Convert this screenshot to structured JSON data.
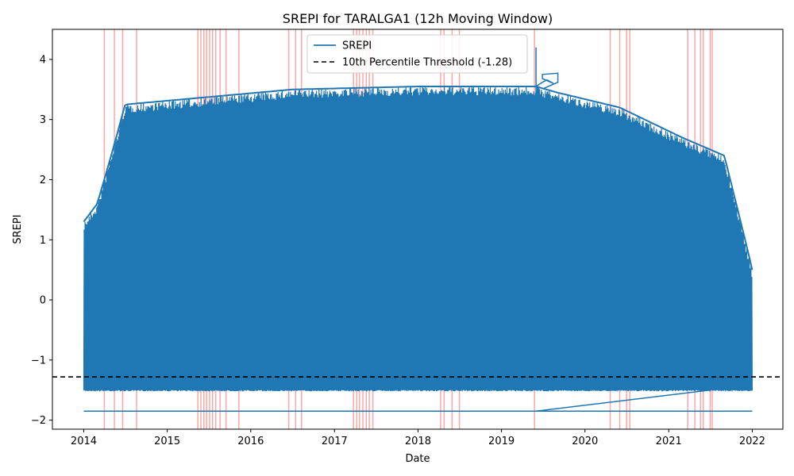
{
  "chart_data": {
    "type": "line",
    "title": "SREPI for TARALGA1 (12h Moving Window)",
    "xlabel": "Date",
    "ylabel": "SREPI",
    "x_ticks": [
      "2014",
      "2015",
      "2016",
      "2017",
      "2018",
      "2019",
      "2020",
      "2021",
      "2022"
    ],
    "y_ticks": [
      -2,
      -1,
      0,
      1,
      2,
      3,
      4
    ],
    "xlim": [
      "2013-08-17",
      "2022-05-15"
    ],
    "ylim": [
      -2.15,
      4.5
    ],
    "legend": {
      "position": "top-center",
      "entries": [
        "SREPI",
        "10th Percentile Threshold (-1.28)"
      ]
    },
    "series": [
      {
        "name": "SREPI",
        "color": "#1f77b4",
        "style": "dense oscillation filling the band",
        "band_x": [
          "2014-01-01",
          "2022-01-01"
        ],
        "band_lower": -1.5,
        "upper_envelope": [
          [
            "2014-01-01",
            1.3
          ],
          [
            "2014-03-01",
            1.6
          ],
          [
            "2014-05-01",
            2.4
          ],
          [
            "2014-07-01",
            3.25
          ],
          [
            "2016-07-01",
            3.5
          ],
          [
            "2018-01-01",
            3.55
          ],
          [
            "2019-06-01",
            3.55
          ],
          [
            "2019-09-01",
            3.45
          ],
          [
            "2020-06-01",
            3.2
          ],
          [
            "2021-03-01",
            2.7
          ],
          [
            "2021-09-01",
            2.4
          ],
          [
            "2021-12-01",
            1.0
          ],
          [
            "2022-01-01",
            0.5
          ]
        ],
        "baseline_line": {
          "x": [
            "2014-01-01",
            "2022-01-01"
          ],
          "y": -1.85
        },
        "diagonal_segment": {
          "x": [
            "2019-06-01",
            "2021-07-01"
          ],
          "y": [
            -1.85,
            -1.5
          ]
        },
        "spike": {
          "x": [
            "2019-06-01",
            "2019-09-01"
          ],
          "y": [
            3.3,
            4.2
          ]
        }
      },
      {
        "name": "10th Percentile Threshold (-1.28)",
        "color": "#000000",
        "style": "dashed",
        "y": -1.28
      }
    ],
    "event_markers": {
      "color": "#ff0000",
      "alpha": 0.35,
      "dates": [
        "2014-04-01",
        "2014-05-15",
        "2014-06-20",
        "2014-08-20",
        "2015-05-15",
        "2015-05-28",
        "2015-06-10",
        "2015-06-22",
        "2015-07-05",
        "2015-07-18",
        "2015-08-01",
        "2015-08-20",
        "2015-09-15",
        "2015-11-10",
        "2016-06-15",
        "2016-07-15",
        "2016-08-10",
        "2017-03-25",
        "2017-04-08",
        "2017-04-20",
        "2017-05-05",
        "2017-05-20",
        "2017-06-02",
        "2017-06-18",
        "2018-04-10",
        "2018-04-25",
        "2018-05-30",
        "2018-07-01",
        "2019-05-25",
        "2020-04-20",
        "2020-06-01",
        "2020-07-01",
        "2020-07-15",
        "2021-03-25",
        "2021-04-25",
        "2021-05-20",
        "2021-06-01",
        "2021-07-01",
        "2021-07-10"
      ]
    }
  }
}
